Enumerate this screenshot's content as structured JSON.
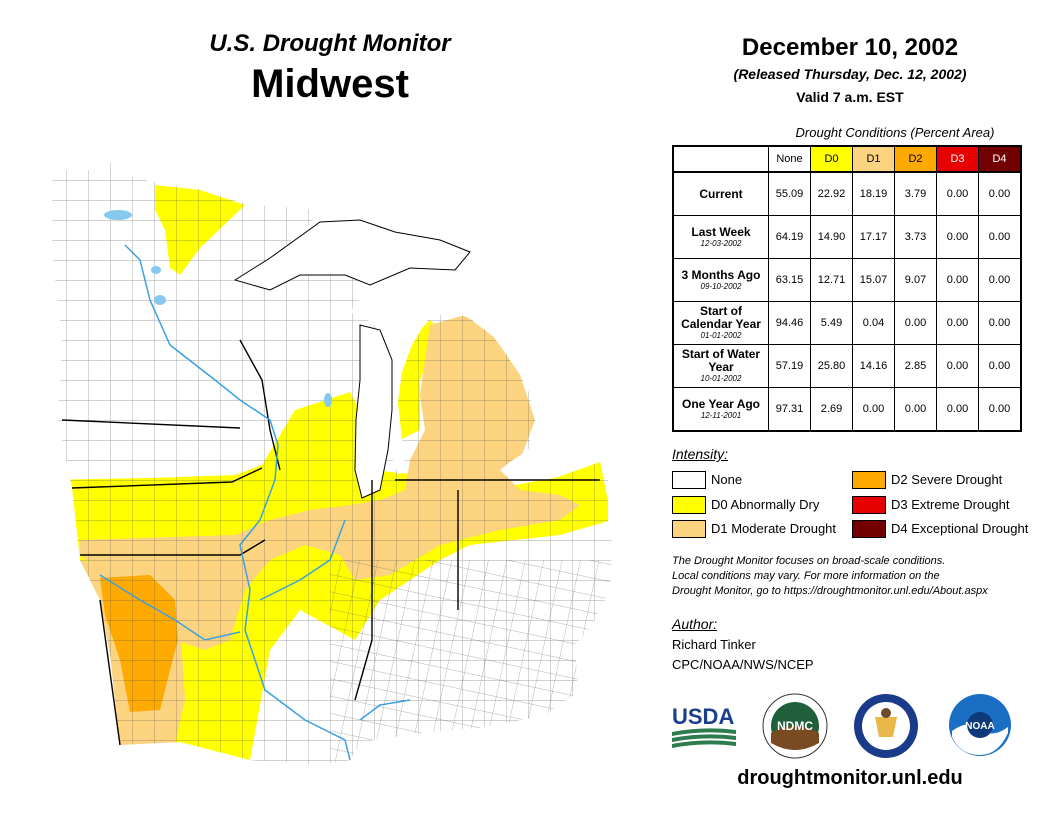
{
  "header": {
    "title": "U.S. Drought Monitor",
    "region": "Midwest",
    "date": "December 10, 2002",
    "released": "(Released Thursday, Dec. 12, 2002)",
    "valid": "Valid 7 a.m. EST"
  },
  "conditions": {
    "caption": "Drought Conditions (Percent Area)",
    "columns": [
      "None",
      "D0",
      "D1",
      "D2",
      "D3",
      "D4"
    ],
    "column_colors": [
      "#ffffff",
      "#ffff00",
      "#fcd37f",
      "#ffaa00",
      "#e60000",
      "#730000"
    ],
    "rows": [
      {
        "label": "Current",
        "sub": "",
        "values": [
          "55.09",
          "22.92",
          "18.19",
          "3.79",
          "0.00",
          "0.00"
        ]
      },
      {
        "label": "Last Week",
        "sub": "12-03-2002",
        "values": [
          "64.19",
          "14.90",
          "17.17",
          "3.73",
          "0.00",
          "0.00"
        ]
      },
      {
        "label": "3 Months Ago",
        "sub": "09-10-2002",
        "values": [
          "63.15",
          "12.71",
          "15.07",
          "9.07",
          "0.00",
          "0.00"
        ]
      },
      {
        "label": "Start of Calendar Year",
        "sub": "01-01-2002",
        "values": [
          "94.46",
          "5.49",
          "0.04",
          "0.00",
          "0.00",
          "0.00"
        ]
      },
      {
        "label": "Start of Water Year",
        "sub": "10-01-2002",
        "values": [
          "57.19",
          "25.80",
          "14.16",
          "2.85",
          "0.00",
          "0.00"
        ]
      },
      {
        "label": "One Year Ago",
        "sub": "12-11-2001",
        "values": [
          "97.31",
          "2.69",
          "0.00",
          "0.00",
          "0.00",
          "0.00"
        ]
      }
    ]
  },
  "legend": {
    "heading": "Intensity:",
    "items": [
      {
        "label": "None",
        "color": "#ffffff"
      },
      {
        "label": "D0 Abnormally Dry",
        "color": "#ffff00"
      },
      {
        "label": "D1 Moderate Drought",
        "color": "#fcd37f"
      },
      {
        "label": "D2 Severe Drought",
        "color": "#ffaa00"
      },
      {
        "label": "D3 Extreme Drought",
        "color": "#e60000"
      },
      {
        "label": "D4 Exceptional Drought",
        "color": "#730000"
      }
    ]
  },
  "note": {
    "line1": "The Drought Monitor focuses on broad-scale conditions.",
    "line2": "Local conditions may vary. For more information on the",
    "line3": "Drought Monitor, go to https://droughtmonitor.unl.edu/About.aspx"
  },
  "author": {
    "heading": "Author:",
    "name": "Richard Tinker",
    "org": "CPC/NOAA/NWS/NCEP"
  },
  "logos": {
    "usda": "USDA",
    "ndmc": "NDMC",
    "noaa": "NOAA"
  },
  "footer_url": "droughtmonitor.unl.edu"
}
